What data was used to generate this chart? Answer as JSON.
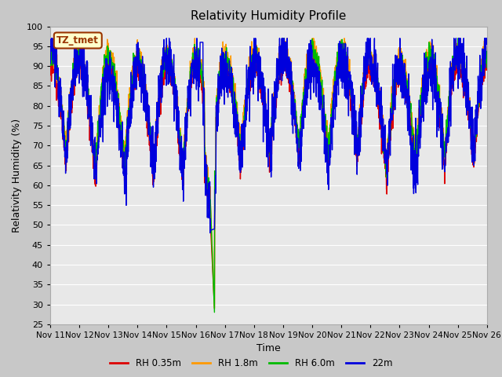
{
  "title": "Relativity Humidity Profile",
  "xlabel": "Time",
  "ylabel": "Relativity Humidity (%)",
  "ylim": [
    25,
    100
  ],
  "yticks": [
    25,
    30,
    35,
    40,
    45,
    50,
    55,
    60,
    65,
    70,
    75,
    80,
    85,
    90,
    95,
    100
  ],
  "fig_bg": "#c8c8c8",
  "plot_bg": "#e8e8e8",
  "grid_color": "#ffffff",
  "tz_label": "TZ_tmet",
  "tz_bg": "#ffffcc",
  "tz_border": "#993300",
  "legend_labels": [
    "RH 0.35m",
    "RH 1.8m",
    "RH 6.0m",
    "22m"
  ],
  "line_colors": [
    "#dd0000",
    "#ff9900",
    "#00bb00",
    "#0000dd"
  ],
  "n_days": 15,
  "start_day": 11,
  "ppd": 144
}
